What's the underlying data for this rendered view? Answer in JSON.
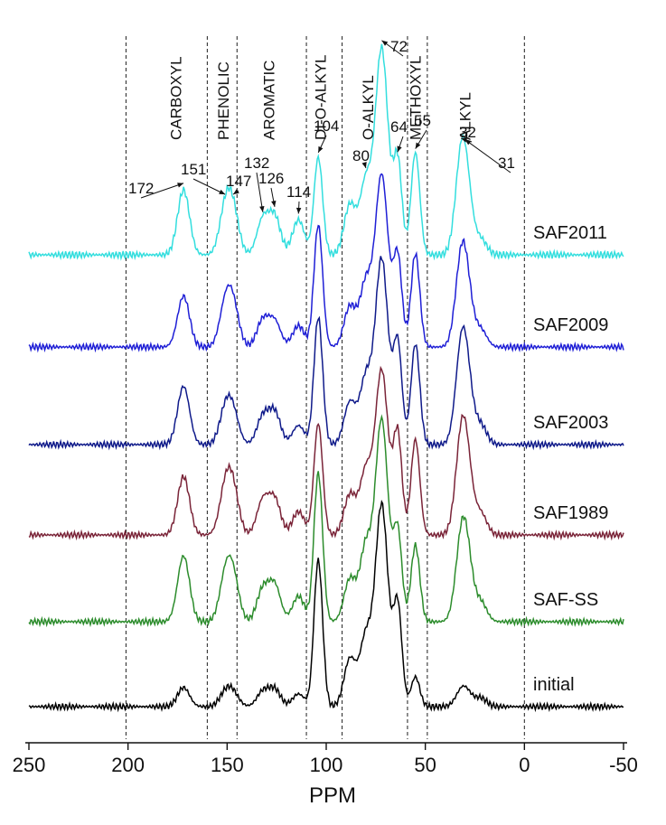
{
  "chart_data": {
    "type": "line",
    "title": "",
    "xlabel": "PPM",
    "ylabel": "",
    "xlim": [
      250,
      -50
    ],
    "x_reversed": true,
    "x_ticks": [
      250,
      200,
      150,
      100,
      50,
      0,
      -50
    ],
    "x_tick_labels": [
      "250",
      "200",
      "150",
      "100",
      "50",
      "0",
      "-50"
    ],
    "grid": false,
    "region_boundaries": [
      201,
      160,
      145,
      110,
      92,
      59,
      49,
      0
    ],
    "regions": [
      {
        "label": "CARBOXYL",
        "center": 176
      },
      {
        "label": "PHENOLIC",
        "center": 152
      },
      {
        "label": "AROMATIC",
        "center": 129
      },
      {
        "label": "DI-O-ALKYL",
        "center": 103
      },
      {
        "label": "O-ALKYL",
        "center": 79
      },
      {
        "label": "METHOXYL",
        "center": 55
      },
      {
        "label": "ALKYL",
        "center": 30
      }
    ],
    "peak_annotations": [
      {
        "label": "172",
        "ppm": 172
      },
      {
        "label": "151",
        "ppm": 151
      },
      {
        "label": "147",
        "ppm": 147
      },
      {
        "label": "132",
        "ppm": 132
      },
      {
        "label": "126",
        "ppm": 126
      },
      {
        "label": "114",
        "ppm": 114
      },
      {
        "label": "104",
        "ppm": 104
      },
      {
        "label": "80",
        "ppm": 80
      },
      {
        "label": "72",
        "ppm": 72
      },
      {
        "label": "64",
        "ppm": 64
      },
      {
        "label": "55",
        "ppm": 55
      },
      {
        "label": "32",
        "ppm": 32
      },
      {
        "label": "31",
        "ppm": 30
      }
    ],
    "series": [
      {
        "name": "SAF2011",
        "color": "#33dede",
        "peaks": [
          [
            172,
            0.52
          ],
          [
            151,
            0.34
          ],
          [
            147,
            0.33
          ],
          [
            132,
            0.28
          ],
          [
            126,
            0.3
          ],
          [
            114,
            0.28
          ],
          [
            104,
            0.78
          ],
          [
            88,
            0.4
          ],
          [
            80,
            0.58
          ],
          [
            72,
            1.65
          ],
          [
            64,
            0.75
          ],
          [
            55,
            0.82
          ],
          [
            32,
            0.68
          ],
          [
            29,
            0.38
          ],
          [
            22,
            0.12
          ]
        ]
      },
      {
        "name": "SAF2009",
        "color": "#1f1fd6",
        "peaks": [
          [
            172,
            0.48
          ],
          [
            151,
            0.36
          ],
          [
            147,
            0.37
          ],
          [
            132,
            0.25
          ],
          [
            126,
            0.24
          ],
          [
            114,
            0.2
          ],
          [
            104,
            1.15
          ],
          [
            88,
            0.38
          ],
          [
            80,
            0.6
          ],
          [
            72,
            1.62
          ],
          [
            64,
            0.85
          ],
          [
            55,
            0.88
          ],
          [
            32,
            0.7
          ],
          [
            29,
            0.42
          ],
          [
            22,
            0.16
          ]
        ]
      },
      {
        "name": "SAF2003",
        "color": "#0f1a8a",
        "peaks": [
          [
            172,
            0.55
          ],
          [
            151,
            0.3
          ],
          [
            147,
            0.28
          ],
          [
            132,
            0.26
          ],
          [
            126,
            0.3
          ],
          [
            114,
            0.18
          ],
          [
            104,
            1.2
          ],
          [
            88,
            0.4
          ],
          [
            80,
            0.62
          ],
          [
            72,
            1.75
          ],
          [
            64,
            0.95
          ],
          [
            55,
            0.95
          ],
          [
            32,
            0.75
          ],
          [
            29,
            0.5
          ],
          [
            22,
            0.18
          ]
        ]
      },
      {
        "name": "SAF1989",
        "color": "#7a2438",
        "peaks": [
          [
            172,
            0.55
          ],
          [
            151,
            0.4
          ],
          [
            147,
            0.4
          ],
          [
            132,
            0.32
          ],
          [
            126,
            0.33
          ],
          [
            114,
            0.22
          ],
          [
            104,
            1.05
          ],
          [
            88,
            0.38
          ],
          [
            80,
            0.6
          ],
          [
            72,
            1.55
          ],
          [
            64,
            0.95
          ],
          [
            55,
            0.9
          ],
          [
            32,
            0.75
          ],
          [
            29,
            0.52
          ],
          [
            22,
            0.2
          ]
        ]
      },
      {
        "name": "SAF-SS",
        "color": "#2c8c2c",
        "peaks": [
          [
            172,
            0.62
          ],
          [
            151,
            0.38
          ],
          [
            147,
            0.4
          ],
          [
            132,
            0.3
          ],
          [
            126,
            0.34
          ],
          [
            114,
            0.24
          ],
          [
            104,
            1.4
          ],
          [
            88,
            0.4
          ],
          [
            80,
            0.7
          ],
          [
            72,
            1.9
          ],
          [
            64,
            0.85
          ],
          [
            55,
            0.72
          ],
          [
            32,
            0.62
          ],
          [
            29,
            0.5
          ],
          [
            22,
            0.18
          ]
        ]
      },
      {
        "name": "initial",
        "color": "#000000",
        "peaks": [
          [
            172,
            0.18
          ],
          [
            151,
            0.12
          ],
          [
            147,
            0.12
          ],
          [
            132,
            0.14
          ],
          [
            126,
            0.16
          ],
          [
            114,
            0.12
          ],
          [
            104,
            1.38
          ],
          [
            88,
            0.45
          ],
          [
            80,
            0.65
          ],
          [
            72,
            1.9
          ],
          [
            64,
            0.95
          ],
          [
            55,
            0.28
          ],
          [
            32,
            0.12
          ],
          [
            29,
            0.1
          ],
          [
            22,
            0.08
          ]
        ]
      }
    ]
  }
}
